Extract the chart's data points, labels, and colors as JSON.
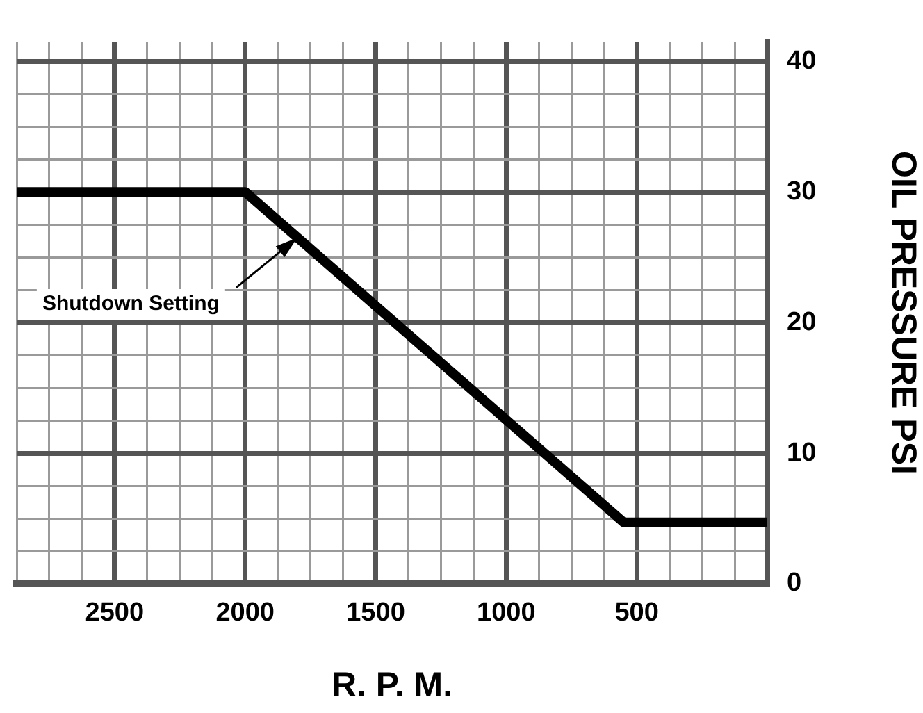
{
  "chart_data": {
    "type": "line",
    "xlabel": "R. P. M.",
    "ylabel": "OIL PRESSURE PSI",
    "x": [
      2875,
      2000,
      550,
      0
    ],
    "series": [
      {
        "color": "#000000",
        "values": [
          30,
          30,
          4.7,
          4.7
        ]
      }
    ],
    "xlim": [
      2875,
      0
    ],
    "xticks": [
      {
        "value": 2875,
        "label": null
      },
      {
        "value": 2750,
        "label": null
      },
      {
        "value": 2625,
        "label": null
      },
      2500,
      {
        "value": 2375,
        "label": null
      },
      {
        "value": 2250,
        "label": null
      },
      {
        "value": 2125,
        "label": null
      },
      2000,
      {
        "value": 1875,
        "label": null
      },
      {
        "value": 1750,
        "label": null
      },
      {
        "value": 1625,
        "label": null
      },
      1500,
      {
        "value": 1375,
        "label": null
      },
      {
        "value": 1250,
        "label": null
      },
      {
        "value": 1125,
        "label": null
      },
      1000,
      {
        "value": 875,
        "label": null
      },
      {
        "value": 750,
        "label": null
      },
      {
        "value": 625,
        "label": null
      },
      500,
      {
        "value": 375,
        "label": null
      },
      {
        "value": 250,
        "label": null
      },
      {
        "value": 125,
        "label": null
      },
      {
        "value": 0,
        "label": null
      }
    ],
    "ylim": [
      0,
      41.5
    ],
    "yticks": [
      0,
      {
        "value": 2.5,
        "label": null
      },
      {
        "value": 5,
        "label": null
      },
      {
        "value": 7.5,
        "label": null
      },
      10,
      {
        "value": 12.5,
        "label": null
      },
      {
        "value": 15,
        "label": null
      },
      {
        "value": 17.5,
        "label": null
      },
      20,
      {
        "value": 22.5,
        "label": null
      },
      {
        "value": 25,
        "label": null
      },
      {
        "value": 27.5,
        "label": null
      },
      30,
      {
        "value": 32.5,
        "label": null
      },
      {
        "value": 35,
        "label": null
      },
      {
        "value": 37.5,
        "label": null
      },
      40
    ],
    "annotations": [
      {
        "text": "Shutdown Setting",
        "x": 1800,
        "y": 26.5
      }
    ],
    "grid": true,
    "legend": false,
    "marker": "none",
    "line_style": "solid"
  }
}
